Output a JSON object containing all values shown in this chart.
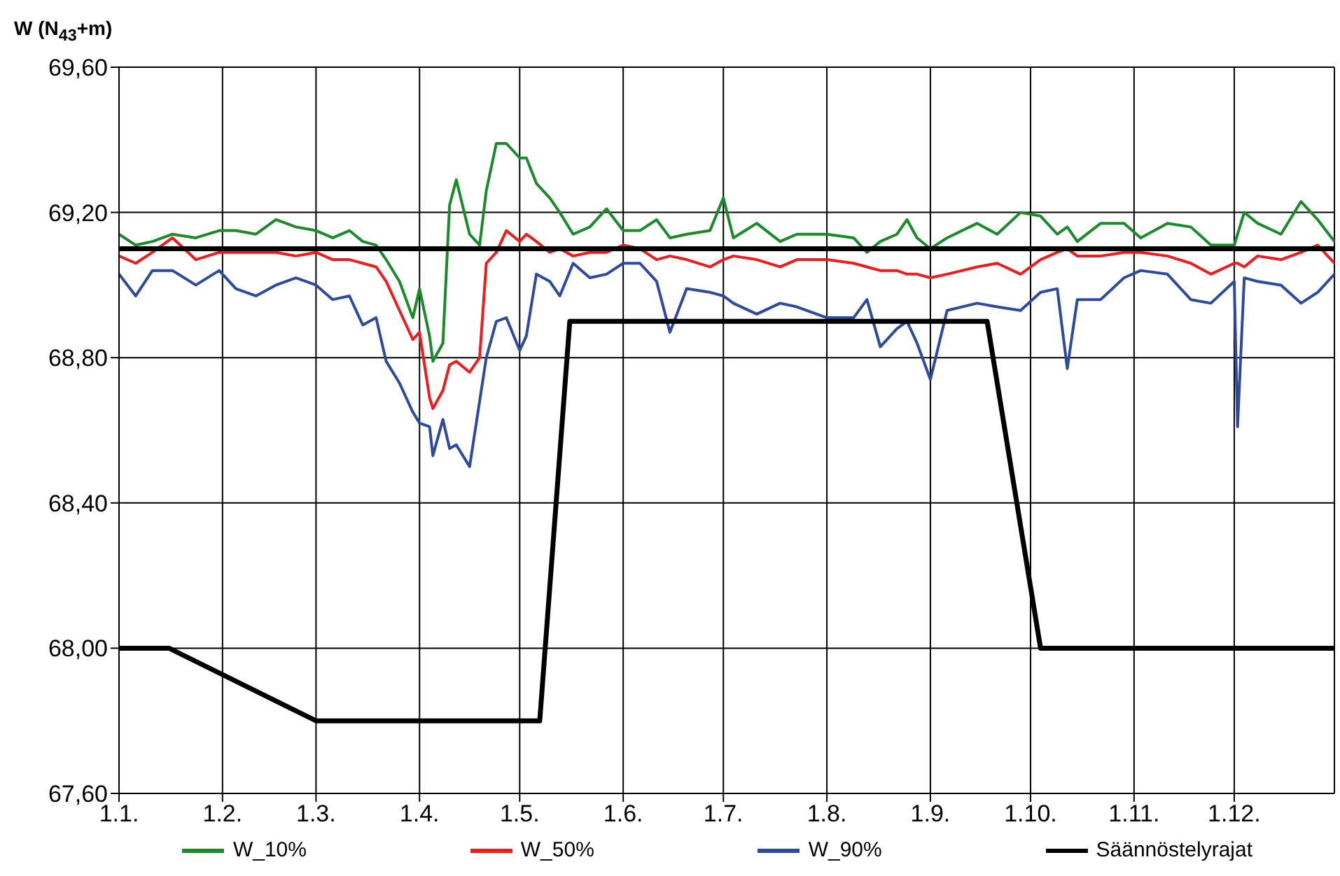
{
  "chart_data": {
    "type": "line",
    "ylabel": "W (N$_{43}$+m)",
    "x": [
      "--01-01",
      "--01-06",
      "--01-11",
      "--01-17",
      "--01-24",
      "--01-31",
      "--02-05",
      "--02-11",
      "--02-17",
      "--02-23",
      "--03-01",
      "--03-06",
      "--03-11",
      "--03-15",
      "--03-19",
      "--03-22",
      "--03-26",
      "--03-30",
      "--04-01",
      "--04-04",
      "--04-05",
      "--04-08",
      "--04-10",
      "--04-12",
      "--04-16",
      "--04-19",
      "--04-21",
      "--04-24",
      "--04-27",
      "--05-01",
      "--05-03",
      "--05-06",
      "--05-10",
      "--05-13",
      "--05-17",
      "--05-22",
      "--05-27",
      "--06-01",
      "--06-06",
      "--06-11",
      "--06-15",
      "--06-20",
      "--06-27",
      "--07-01",
      "--07-04",
      "--07-11",
      "--07-18",
      "--07-23",
      "--08-01",
      "--08-09",
      "--08-13",
      "--08-17",
      "--08-22",
      "--08-25",
      "--08-28",
      "--09-01",
      "--09-06",
      "--09-15",
      "--09-21",
      "--09-28",
      "--10-04",
      "--10-09",
      "--10-12",
      "--10-15",
      "--10-22",
      "--10-29",
      "--11-03",
      "--11-11",
      "--11-18",
      "--11-24",
      "--12-01",
      "--12-02",
      "--12-04",
      "--12-08",
      "--12-15",
      "--12-21",
      "--12-26",
      "--12-31"
    ],
    "series": [
      {
        "name": "W_10%",
        "color": "#1a8a2a",
        "values": [
          69.14,
          69.11,
          69.12,
          69.14,
          69.13,
          69.15,
          69.15,
          69.14,
          69.18,
          69.16,
          69.15,
          69.13,
          69.15,
          69.12,
          69.11,
          69.07,
          69.01,
          68.91,
          68.99,
          68.86,
          68.79,
          68.84,
          69.22,
          69.29,
          69.14,
          69.11,
          69.26,
          69.39,
          69.39,
          69.35,
          69.35,
          69.28,
          69.24,
          69.2,
          69.14,
          69.16,
          69.21,
          69.15,
          69.15,
          69.18,
          69.13,
          69.14,
          69.15,
          69.24,
          69.13,
          69.17,
          69.12,
          69.14,
          69.14,
          69.13,
          69.09,
          69.12,
          69.14,
          69.18,
          69.13,
          69.1,
          69.13,
          69.17,
          69.14,
          69.2,
          69.19,
          69.14,
          69.16,
          69.12,
          69.17,
          69.17,
          69.13,
          69.17,
          69.16,
          69.11,
          69.11,
          69.14,
          69.2,
          69.17,
          69.14,
          69.23,
          69.18,
          69.12
        ]
      },
      {
        "name": "W_50%",
        "color": "#ee1c1c",
        "values": [
          69.08,
          69.06,
          69.09,
          69.13,
          69.07,
          69.09,
          69.09,
          69.09,
          69.09,
          69.08,
          69.09,
          69.07,
          69.07,
          69.06,
          69.05,
          69.01,
          68.93,
          68.85,
          68.87,
          68.69,
          68.66,
          68.71,
          68.78,
          68.79,
          68.76,
          68.8,
          69.06,
          69.09,
          69.15,
          69.12,
          69.14,
          69.12,
          69.09,
          69.1,
          69.08,
          69.09,
          69.09,
          69.11,
          69.1,
          69.07,
          69.08,
          69.07,
          69.05,
          69.07,
          69.08,
          69.07,
          69.05,
          69.07,
          69.07,
          69.06,
          69.05,
          69.04,
          69.04,
          69.03,
          69.03,
          69.02,
          69.03,
          69.05,
          69.06,
          69.03,
          69.07,
          69.09,
          69.1,
          69.08,
          69.08,
          69.09,
          69.09,
          69.08,
          69.06,
          69.03,
          69.06,
          69.06,
          69.05,
          69.08,
          69.07,
          69.09,
          69.11,
          69.06
        ]
      },
      {
        "name": "W_90%",
        "color": "#2e4a9e",
        "values": [
          69.03,
          68.97,
          69.04,
          69.04,
          69.0,
          69.04,
          68.99,
          68.97,
          69.0,
          69.02,
          69.0,
          68.96,
          68.97,
          68.89,
          68.91,
          68.79,
          68.73,
          68.65,
          68.62,
          68.61,
          68.53,
          68.63,
          68.55,
          68.56,
          68.5,
          68.68,
          68.8,
          68.9,
          68.91,
          68.82,
          68.86,
          69.03,
          69.01,
          68.97,
          69.06,
          69.02,
          69.03,
          69.06,
          69.06,
          69.01,
          68.87,
          68.99,
          68.98,
          68.97,
          68.95,
          68.92,
          68.95,
          68.94,
          68.91,
          68.91,
          68.96,
          68.83,
          68.88,
          68.9,
          68.84,
          68.74,
          68.93,
          68.95,
          68.94,
          68.93,
          68.98,
          68.99,
          68.77,
          68.96,
          68.96,
          69.02,
          69.04,
          69.03,
          68.96,
          68.95,
          69.01,
          68.61,
          69.02,
          69.01,
          69.0,
          68.95,
          68.98,
          69.03
        ]
      },
      {
        "name": "Säännöstelyrajat",
        "color": "#000000",
        "x": [
          "--01-01",
          "--01-16",
          "--03-01",
          "--05-07",
          "--05-16",
          "--09-18",
          "--10-04",
          "--12-31"
        ],
        "values": [
          68.0,
          68.0,
          67.8,
          67.8,
          68.9,
          68.9,
          68.0,
          68.0
        ]
      },
      {
        "color": "#000000",
        "x": [
          "--01-01",
          "--12-31"
        ],
        "values": [
          69.1,
          69.1
        ]
      }
    ],
    "xlim": [
      "--01-01",
      "--12-31"
    ],
    "xticks": [
      {
        "value": "--01-01",
        "label": "1.1."
      },
      {
        "value": "--02-01",
        "label": "1.2."
      },
      {
        "value": "--03-01",
        "label": "1.3."
      },
      {
        "value": "--04-01",
        "label": "1.4."
      },
      {
        "value": "--05-01",
        "label": "1.5."
      },
      {
        "value": "--06-01",
        "label": "1.6."
      },
      {
        "value": "--07-01",
        "label": "1.7."
      },
      {
        "value": "--08-01",
        "label": "1.8."
      },
      {
        "value": "--09-01",
        "label": "1.9."
      },
      {
        "value": "--10-01",
        "label": "1.10."
      },
      {
        "value": "--11-01",
        "label": "1.11."
      },
      {
        "value": "--12-01",
        "label": "1.12."
      }
    ],
    "ylim": [
      67.6,
      69.6
    ],
    "yticks": [
      {
        "value": 67.6,
        "label": "67,60"
      },
      {
        "value": 68.0,
        "label": "68,00"
      },
      {
        "value": 68.4,
        "label": "68,40"
      },
      {
        "value": 68.8,
        "label": "68,80"
      },
      {
        "value": 69.2,
        "label": "69,20"
      },
      {
        "value": 69.6,
        "label": "69,60"
      }
    ],
    "grid": true,
    "legend": "bottom"
  }
}
